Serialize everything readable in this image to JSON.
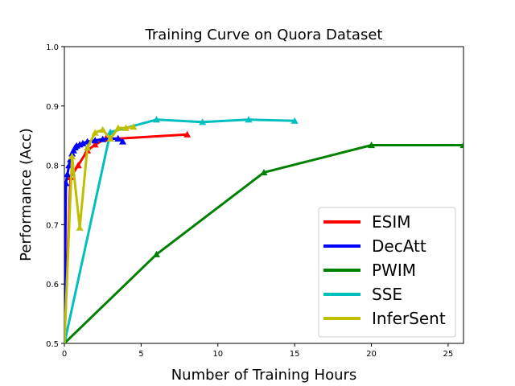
{
  "chart_data": {
    "type": "line",
    "title": "Training Curve on Quora Dataset",
    "xlabel": "Number of Training Hours",
    "ylabel": "Performance (Acc)",
    "xlim": [
      0,
      26
    ],
    "ylim": [
      0.5,
      1.0
    ],
    "xticks": [
      0,
      5,
      10,
      15,
      20,
      25
    ],
    "yticks": [
      0.5,
      0.6,
      0.7,
      0.8,
      0.9,
      1.0
    ],
    "xtick_labels": [
      "0",
      "5",
      "10",
      "15",
      "20",
      "25"
    ],
    "ytick_labels": [
      "0.5",
      "0.6",
      "0.7",
      "0.8",
      "0.9",
      "1.0"
    ],
    "grid": false,
    "legend_position": "lower-right",
    "series": [
      {
        "name": "ESIM",
        "color": "#ff0000",
        "x": [
          0,
          0.4,
          0.9,
          1.5,
          2.0,
          2.7,
          3.5,
          8.0
        ],
        "y": [
          0.5,
          0.78,
          0.8,
          0.825,
          0.835,
          0.845,
          0.845,
          0.852
        ]
      },
      {
        "name": "DecAtt",
        "color": "#0000ff",
        "x": [
          0,
          0.1,
          0.2,
          0.3,
          0.4,
          0.5,
          0.6,
          0.7,
          0.8,
          1.0,
          1.2,
          1.5,
          2.0,
          2.5,
          3.0,
          3.5,
          3.8
        ],
        "y": [
          0.5,
          0.77,
          0.785,
          0.8,
          0.81,
          0.82,
          0.825,
          0.83,
          0.833,
          0.835,
          0.837,
          0.84,
          0.842,
          0.844,
          0.845,
          0.845,
          0.84
        ]
      },
      {
        "name": "PWIM",
        "color": "#008000",
        "x": [
          0,
          6,
          13,
          20,
          26
        ],
        "y": [
          0.5,
          0.65,
          0.788,
          0.834,
          0.834
        ]
      },
      {
        "name": "SSE",
        "color": "#00bfbf",
        "x": [
          0,
          3,
          6,
          9,
          12,
          15
        ],
        "y": [
          0.5,
          0.856,
          0.877,
          0.873,
          0.877,
          0.875
        ]
      },
      {
        "name": "InferSent",
        "color": "#bfbf00",
        "x": [
          0,
          0.5,
          1.0,
          1.5,
          2.0,
          2.5,
          3.0,
          3.5,
          4.0,
          4.5
        ],
        "y": [
          0.5,
          0.815,
          0.695,
          0.83,
          0.855,
          0.86,
          0.845,
          0.863,
          0.863,
          0.865
        ]
      }
    ]
  }
}
